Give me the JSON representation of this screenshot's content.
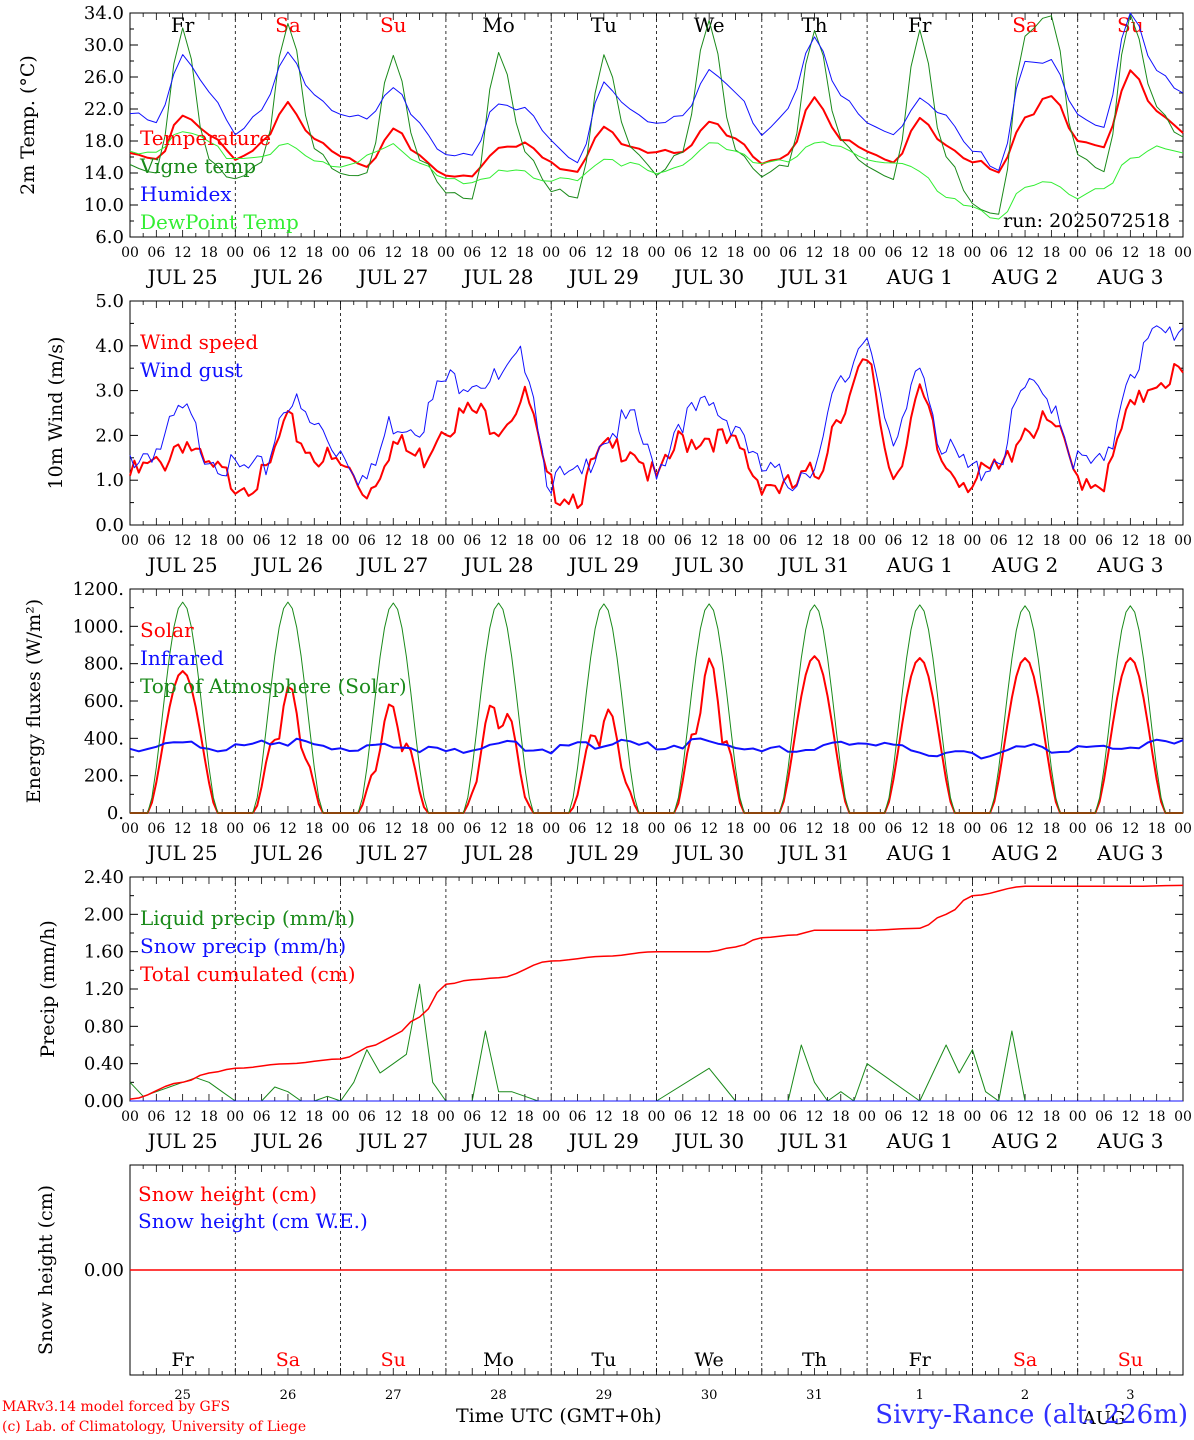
{
  "run_label": "run: 2025072518",
  "station_title": "Sivry-Rance (alt. 226m)",
  "x_axis_label": "Time UTC (GMT+0h)",
  "footer": {
    "model_line": "MARv3.14 model forced by GFS",
    "credit_line": "(c) Lab. of Climatology, University of Liege"
  },
  "colors": {
    "red": "#ff0000",
    "green": "#1a8a1a",
    "blue": "#1010ff",
    "lightgreen": "#33ee33"
  },
  "days": [
    {
      "weekday": "Fr",
      "date": "JUL 25",
      "num": "25",
      "weekend": false
    },
    {
      "weekday": "Sa",
      "date": "JUL 26",
      "num": "26",
      "weekend": true
    },
    {
      "weekday": "Su",
      "date": "JUL 27",
      "num": "27",
      "weekend": true
    },
    {
      "weekday": "Mo",
      "date": "JUL 28",
      "num": "28",
      "weekend": false
    },
    {
      "weekday": "Tu",
      "date": "JUL 29",
      "num": "29",
      "weekend": false
    },
    {
      "weekday": "We",
      "date": "JUL 30",
      "num": "30",
      "weekend": false
    },
    {
      "weekday": "Th",
      "date": "JUL 31",
      "num": "31",
      "weekend": false
    },
    {
      "weekday": "Fr",
      "date": "AUG  1",
      "num": "1",
      "weekend": false
    },
    {
      "weekday": "Sa",
      "date": "AUG  2",
      "num": "2",
      "weekend": true
    },
    {
      "weekday": "Su",
      "date": "AUG  3",
      "num": "3",
      "weekend": true
    }
  ],
  "hour_ticks": [
    "00",
    "06",
    "12",
    "18"
  ],
  "last_hour_tick": "00",
  "bottom_month_label": "AUG",
  "chart_data": [
    {
      "id": "temperature",
      "type": "line",
      "ylabel": "2m Temp. (°C)",
      "ylim": [
        6,
        34
      ],
      "yticks": [
        "6.0",
        "10.0",
        "14.0",
        "18.0",
        "22.0",
        "26.0",
        "30.0",
        "34.0"
      ],
      "x_unit": "hours since JUL 25 00 UTC",
      "x_labels": "JUL 25 00 to AUG 4 00, every 6 h",
      "series": [
        {
          "name": "Temperature",
          "color": "red",
          "width": 2,
          "x": [
            0,
            6,
            12,
            18,
            24,
            30,
            36,
            42,
            48,
            54,
            60,
            66,
            72,
            78,
            84,
            90,
            96,
            102,
            108,
            114,
            120,
            126,
            132,
            138,
            144,
            150,
            156,
            162,
            168,
            174,
            180,
            186,
            192,
            198,
            204,
            210,
            216,
            222,
            228,
            234,
            240
          ],
          "y": [
            16.5,
            15.5,
            21.5,
            18.5,
            16,
            17.5,
            22.5,
            18.5,
            16,
            15,
            19.5,
            16,
            14,
            13.5,
            17.5,
            17.5,
            15,
            14.5,
            19.5,
            17.5,
            16.5,
            16.5,
            20.5,
            18,
            15.5,
            16,
            23.5,
            18.5,
            16.5,
            15.5,
            20.5,
            17.5,
            15.5,
            14,
            21,
            23.5,
            18,
            17.5,
            26.5,
            22,
            19
          ]
        },
        {
          "name": "Vigne temp",
          "color": "green",
          "width": 1,
          "x": [
            0,
            6,
            12,
            18,
            24,
            30,
            36,
            42,
            48,
            54,
            60,
            66,
            72,
            78,
            84,
            90,
            96,
            102,
            108,
            114,
            120,
            126,
            132,
            138,
            144,
            150,
            156,
            162,
            168,
            174,
            180,
            186,
            192,
            198,
            204,
            210,
            216,
            222,
            228,
            234,
            240
          ],
          "y": [
            15,
            14,
            32,
            16,
            13,
            15,
            33,
            17,
            14,
            14,
            29,
            16,
            11.5,
            11,
            29,
            17,
            12,
            10.5,
            29,
            17,
            14,
            17,
            33,
            17,
            13.5,
            15,
            32,
            18,
            15,
            13,
            32,
            16,
            10,
            9,
            31,
            34,
            16,
            14,
            34,
            22,
            18.5
          ]
        },
        {
          "name": "Humidex",
          "color": "blue",
          "width": 1,
          "x": [
            0,
            6,
            12,
            18,
            24,
            30,
            36,
            42,
            48,
            54,
            60,
            66,
            72,
            78,
            84,
            90,
            96,
            102,
            108,
            114,
            120,
            126,
            132,
            138,
            144,
            150,
            156,
            162,
            168,
            174,
            180,
            186,
            192,
            198,
            204,
            210,
            216,
            222,
            228,
            234,
            240
          ],
          "y": [
            21.5,
            20,
            29,
            24,
            19,
            22,
            29,
            24,
            21,
            21,
            25,
            20,
            16.5,
            16,
            23,
            22,
            18,
            15.5,
            25,
            22,
            20,
            21,
            27,
            24,
            19,
            22,
            31,
            24,
            20,
            19,
            23,
            21,
            17,
            14,
            28,
            28,
            21,
            20,
            34,
            27,
            24
          ]
        },
        {
          "name": "DewPoint Temp",
          "color": "lightgreen",
          "width": 1,
          "x": [
            0,
            6,
            12,
            18,
            24,
            30,
            36,
            42,
            48,
            54,
            60,
            66,
            72,
            78,
            84,
            90,
            96,
            102,
            108,
            114,
            120,
            126,
            132,
            138,
            144,
            150,
            156,
            162,
            168,
            174,
            180,
            186,
            192,
            198,
            204,
            210,
            216,
            222,
            228,
            234,
            240
          ],
          "y": [
            16.5,
            17,
            19,
            18,
            15.5,
            16,
            18,
            15.5,
            15,
            16,
            17.5,
            15.5,
            13,
            13,
            14,
            14,
            13,
            13,
            16,
            15,
            14,
            15,
            17.5,
            17,
            15,
            15.5,
            18,
            17,
            16,
            15,
            14.5,
            11,
            9.5,
            8.5,
            12,
            13,
            11,
            12,
            16,
            17,
            16.5
          ]
        }
      ]
    },
    {
      "id": "wind",
      "type": "line",
      "ylabel": "10m Wind (m/s)",
      "ylim": [
        0,
        5
      ],
      "yticks": [
        "0.0",
        "1.0",
        "2.0",
        "3.0",
        "4.0",
        "5.0"
      ],
      "series": [
        {
          "name": "Wind speed",
          "color": "red",
          "width": 2,
          "x": [
            0,
            6,
            12,
            18,
            24,
            30,
            36,
            42,
            48,
            54,
            60,
            66,
            72,
            78,
            84,
            90,
            96,
            102,
            108,
            114,
            120,
            126,
            132,
            138,
            144,
            150,
            156,
            162,
            168,
            174,
            180,
            186,
            192,
            198,
            204,
            210,
            216,
            222,
            228,
            234,
            240
          ],
          "y": [
            1.1,
            1.3,
            1.9,
            1.2,
            1.0,
            1.0,
            2.2,
            1.6,
            1.3,
            0.8,
            1.8,
            1.5,
            2.3,
            2.5,
            2.3,
            2.8,
            0.8,
            0.7,
            1.6,
            1.8,
            1.0,
            1.9,
            2.0,
            1.7,
            1.0,
            0.8,
            1.1,
            2.6,
            3.5,
            1.2,
            2.8,
            1.3,
            1.0,
            1.2,
            2.2,
            2.2,
            1.1,
            1.0,
            2.5,
            3.3,
            3.4
          ]
        },
        {
          "name": "Wind gust",
          "color": "blue",
          "width": 1,
          "x": [
            0,
            6,
            12,
            18,
            24,
            30,
            36,
            42,
            48,
            54,
            60,
            66,
            72,
            78,
            84,
            90,
            96,
            102,
            108,
            114,
            120,
            126,
            132,
            138,
            144,
            150,
            156,
            162,
            168,
            174,
            180,
            186,
            192,
            198,
            204,
            210,
            216,
            222,
            228,
            234,
            240
          ],
          "y": [
            1.5,
            1.7,
            2.5,
            1.6,
            1.2,
            1.2,
            2.8,
            2.2,
            1.7,
            1.0,
            2.3,
            2.3,
            3.2,
            3.3,
            3.2,
            3.7,
            1.0,
            1.0,
            2.0,
            2.3,
            1.3,
            2.4,
            2.6,
            2.3,
            1.2,
            1.0,
            1.4,
            3.1,
            4.3,
            1.6,
            3.6,
            1.6,
            1.2,
            1.5,
            3.0,
            2.8,
            1.4,
            1.3,
            3.5,
            4.2,
            4.4
          ]
        }
      ]
    },
    {
      "id": "energy",
      "type": "line",
      "ylabel": "Energy fluxes (W/m²)",
      "ylim": [
        0,
        1200
      ],
      "yticks": [
        "0.",
        "200.",
        "400.",
        "600.",
        "800.",
        "1000.",
        "1200."
      ],
      "series": [
        {
          "name": "Solar",
          "color": "red",
          "width": 2,
          "daily_peak": [
            760,
            690,
            600,
            660,
            590,
            830,
            840,
            830,
            830,
            830
          ]
        },
        {
          "name": "Infrared",
          "color": "blue",
          "width": 2,
          "x": [
            0,
            12,
            24,
            36,
            48,
            60,
            72,
            84,
            96,
            108,
            120,
            132,
            144,
            156,
            168,
            180,
            192,
            204,
            216,
            228,
            240
          ],
          "y": [
            340,
            370,
            350,
            380,
            350,
            370,
            330,
            370,
            340,
            370,
            360,
            380,
            330,
            350,
            380,
            330,
            310,
            350,
            340,
            360,
            390
          ]
        },
        {
          "name": "Top of Atmosphere (Solar)",
          "color": "green",
          "width": 1,
          "daily_peak": [
            1130,
            1130,
            1125,
            1125,
            1120,
            1120,
            1115,
            1115,
            1110,
            1110
          ]
        }
      ]
    },
    {
      "id": "precip",
      "type": "line",
      "ylabel": "Precip (mm/h)",
      "ylim": [
        0,
        2.4
      ],
      "yticks": [
        "0.00",
        "0.40",
        "0.80",
        "1.20",
        "1.60",
        "2.00",
        "2.40"
      ],
      "series": [
        {
          "name": "Liquid precip (mm/h)",
          "color": "green",
          "width": 1,
          "x": [
            0,
            3,
            6,
            9,
            12,
            15,
            18,
            21,
            24,
            27,
            30,
            33,
            36,
            39,
            42,
            45,
            48,
            51,
            54,
            57,
            60,
            63,
            66,
            69,
            72,
            75,
            78,
            81,
            84,
            87,
            90,
            93,
            96,
            120,
            132,
            138,
            144,
            150,
            153,
            156,
            159,
            162,
            165,
            168,
            180,
            186,
            189,
            192,
            195,
            198,
            201,
            204,
            210,
            216,
            240
          ],
          "y": [
            0.2,
            0.05,
            0.1,
            0.15,
            0.2,
            0.25,
            0.2,
            0.1,
            0,
            0,
            0,
            0.15,
            0.1,
            0,
            0,
            0.05,
            0,
            0.2,
            0.55,
            0.3,
            0.4,
            0.5,
            1.25,
            0.2,
            0,
            0,
            0,
            0.75,
            0.1,
            0.1,
            0.05,
            0,
            0,
            0,
            0.35,
            0,
            0,
            0,
            0.6,
            0.2,
            0,
            0.1,
            0,
            0.4,
            0,
            0.6,
            0.3,
            0.55,
            0.1,
            0,
            0.75,
            0,
            0,
            0,
            0
          ]
        },
        {
          "name": "Snow precip (mm/h)",
          "color": "blue",
          "width": 1,
          "x": [
            0,
            240
          ],
          "y": [
            0,
            0
          ]
        },
        {
          "name": "Total cumulated (cm)",
          "color": "red",
          "width": 1.5,
          "x": [
            0,
            12,
            18,
            24,
            36,
            48,
            56,
            60,
            66,
            72,
            78,
            84,
            96,
            108,
            120,
            132,
            138,
            144,
            152,
            156,
            168,
            180,
            186,
            192,
            204,
            216,
            228,
            240
          ],
          "y": [
            0.02,
            0.2,
            0.3,
            0.35,
            0.4,
            0.45,
            0.6,
            0.7,
            0.9,
            1.25,
            1.3,
            1.32,
            1.5,
            1.55,
            1.6,
            1.6,
            1.65,
            1.75,
            1.78,
            1.83,
            1.83,
            1.85,
            2.0,
            2.2,
            2.3,
            2.3,
            2.3,
            2.31
          ]
        }
      ]
    },
    {
      "id": "snow",
      "type": "line",
      "ylabel": "Snow height (cm)",
      "yticks": [
        "0.00"
      ],
      "series": [
        {
          "name": "Snow height (cm)",
          "color": "red",
          "width": 1.5,
          "x": [
            0,
            240
          ],
          "y": [
            0,
            0
          ]
        },
        {
          "name": "Snow height (cm W.E.)",
          "color": "blue",
          "width": 1,
          "x": [
            0,
            240
          ],
          "y": [
            0,
            0
          ]
        }
      ]
    }
  ]
}
